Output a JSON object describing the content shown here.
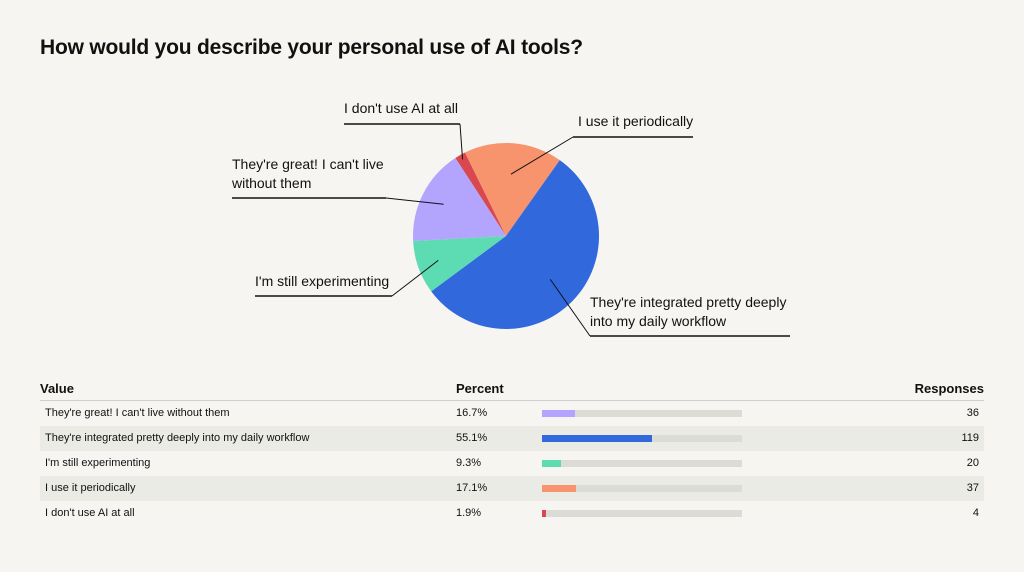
{
  "title": "How would you describe your personal use of AI tools?",
  "table": {
    "headers": {
      "value": "Value",
      "percent": "Percent",
      "responses": "Responses"
    }
  },
  "chart_data": {
    "type": "pie",
    "title": "How would you describe your personal use of AI tools?",
    "slices": [
      {
        "label": "They're great! I can't live without them",
        "label_lines": [
          "They're great! I can't live",
          "without them"
        ],
        "percent_label": "16.7%",
        "percent": 16.7,
        "responses": 36,
        "color": "#b3a4fd"
      },
      {
        "label": "They're integrated pretty deeply into my daily workflow",
        "label_lines": [
          "They're integrated pretty deeply",
          "into my daily workflow"
        ],
        "percent_label": "55.1%",
        "percent": 55.1,
        "responses": 119,
        "color": "#3168dc"
      },
      {
        "label": "I'm still experimenting",
        "label_lines": [
          "I'm still experimenting"
        ],
        "percent_label": "9.3%",
        "percent": 9.3,
        "responses": 20,
        "color": "#5ddcb3"
      },
      {
        "label": "I use it periodically",
        "label_lines": [
          "I use it periodically"
        ],
        "percent_label": "17.1%",
        "percent": 17.1,
        "responses": 37,
        "color": "#f7946e"
      },
      {
        "label": "I don't use AI at all",
        "label_lines": [
          "I don't use AI at all"
        ],
        "percent_label": "1.9%",
        "percent": 1.9,
        "responses": 4,
        "color": "#d9474f"
      }
    ]
  }
}
